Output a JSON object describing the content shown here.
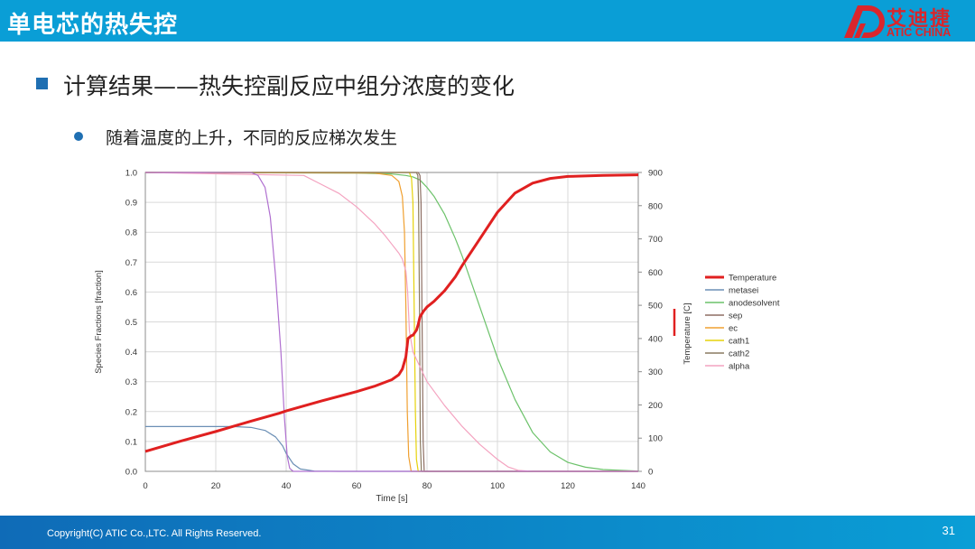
{
  "header": {
    "title": "单电芯的热失控"
  },
  "logo": {
    "text_cn": "艾迪捷",
    "text_en": "ATIC CHINA"
  },
  "heading": "计算结果——热失控副反应中组分浓度的变化",
  "subheading": "随着温度的上升，不同的反应梯次发生",
  "footer": {
    "copyright": "Copyright(C) ATIC Co.,LTC. All Rights Reserved.",
    "page": "31"
  },
  "colors": {
    "header": "#0a9ed6",
    "footer": "#0f6bb7",
    "accent_red": "#d9262c"
  },
  "chart_data": {
    "type": "line",
    "title": "",
    "xlabel": "Time [s]",
    "ylabel_left": "Species Fractions [fraction]",
    "ylabel_right": "Temperature [C]",
    "xlim": [
      0,
      140
    ],
    "ylim_left": [
      0,
      1
    ],
    "ylim_right": [
      0,
      900
    ],
    "x_ticks": [
      "0",
      "20",
      "40",
      "60",
      "80",
      "100",
      "120",
      "140"
    ],
    "y_left_ticks": [
      "0.0",
      "0.1",
      "0.2",
      "0.3",
      "0.4",
      "0.5",
      "0.6",
      "0.7",
      "0.8",
      "0.9",
      "1.0"
    ],
    "y_right_ticks": [
      "0",
      "100",
      "200",
      "300",
      "400",
      "500",
      "600",
      "700",
      "800",
      "900"
    ],
    "grid": true,
    "legend_position": "right",
    "series": [
      {
        "name": "Temperature",
        "axis": "right",
        "color": "#e02020",
        "width": 3,
        "points": [
          [
            0,
            60
          ],
          [
            10,
            91
          ],
          [
            20,
            120
          ],
          [
            30,
            151
          ],
          [
            38,
            175
          ],
          [
            40,
            182
          ],
          [
            50,
            212
          ],
          [
            60,
            240
          ],
          [
            65,
            256
          ],
          [
            70,
            276
          ],
          [
            72,
            291
          ],
          [
            73,
            308
          ],
          [
            74,
            345
          ],
          [
            74.6,
            400
          ],
          [
            75.5,
            408
          ],
          [
            76,
            410
          ],
          [
            77,
            425
          ],
          [
            77.5,
            442
          ],
          [
            78,
            465
          ],
          [
            79,
            482
          ],
          [
            80,
            495
          ],
          [
            82,
            512
          ],
          [
            85,
            544
          ],
          [
            88,
            585
          ],
          [
            90,
            620
          ],
          [
            95,
            700
          ],
          [
            100,
            780
          ],
          [
            105,
            838
          ],
          [
            110,
            868
          ],
          [
            115,
            882
          ],
          [
            120,
            888
          ],
          [
            130,
            891
          ],
          [
            140,
            893
          ]
        ]
      },
      {
        "name": "metasei",
        "axis": "left",
        "color": "#6b8fb5",
        "width": 1.2,
        "points": [
          [
            0,
            0.15
          ],
          [
            25,
            0.15
          ],
          [
            30,
            0.147
          ],
          [
            34,
            0.137
          ],
          [
            37,
            0.115
          ],
          [
            39,
            0.085
          ],
          [
            40,
            0.06
          ],
          [
            42,
            0.025
          ],
          [
            44,
            0.008
          ],
          [
            48,
            0.001
          ],
          [
            55,
            0
          ],
          [
            140,
            0
          ]
        ]
      },
      {
        "name": "anodesolvent",
        "axis": "left",
        "color": "#6cc26a",
        "width": 1.2,
        "points": [
          [
            0,
            1
          ],
          [
            60,
            0.998
          ],
          [
            70,
            0.995
          ],
          [
            74,
            0.99
          ],
          [
            76,
            0.985
          ],
          [
            78,
            0.975
          ],
          [
            80,
            0.95
          ],
          [
            82,
            0.92
          ],
          [
            85,
            0.86
          ],
          [
            88,
            0.78
          ],
          [
            90,
            0.72
          ],
          [
            95,
            0.55
          ],
          [
            100,
            0.38
          ],
          [
            105,
            0.24
          ],
          [
            110,
            0.13
          ],
          [
            115,
            0.065
          ],
          [
            120,
            0.03
          ],
          [
            125,
            0.014
          ],
          [
            130,
            0.006
          ],
          [
            140,
            0.001
          ]
        ]
      },
      {
        "name": "sep",
        "axis": "left",
        "color": "#8d6e63",
        "width": 1.2,
        "points": [
          [
            0,
            1
          ],
          [
            77.5,
            1
          ],
          [
            78,
            0.99
          ],
          [
            78.3,
            0.9
          ],
          [
            78.6,
            0.5
          ],
          [
            78.9,
            0.1
          ],
          [
            79.2,
            0
          ],
          [
            140,
            0
          ]
        ]
      },
      {
        "name": "ec",
        "axis": "left",
        "color": "#f0a030",
        "width": 1.2,
        "points": [
          [
            0,
            1
          ],
          [
            65,
            0.998
          ],
          [
            70,
            0.99
          ],
          [
            72,
            0.97
          ],
          [
            73,
            0.92
          ],
          [
            73.6,
            0.8
          ],
          [
            74,
            0.55
          ],
          [
            74.4,
            0.2
          ],
          [
            74.8,
            0.05
          ],
          [
            75.5,
            0
          ],
          [
            140,
            0
          ]
        ]
      },
      {
        "name": "cath1",
        "axis": "left",
        "color": "#e6d20a",
        "width": 1.2,
        "points": [
          [
            0,
            1
          ],
          [
            75,
            1
          ],
          [
            75.6,
            0.98
          ],
          [
            76,
            0.9
          ],
          [
            76.3,
            0.6
          ],
          [
            76.7,
            0.2
          ],
          [
            77,
            0.04
          ],
          [
            77.5,
            0
          ],
          [
            140,
            0
          ]
        ]
      },
      {
        "name": "cath2",
        "axis": "left",
        "color": "#8a7a60",
        "width": 1.2,
        "points": [
          [
            0,
            1
          ],
          [
            77,
            1
          ],
          [
            77.4,
            0.99
          ],
          [
            77.6,
            0.9
          ],
          [
            77.9,
            0.5
          ],
          [
            78.1,
            0.1
          ],
          [
            78.4,
            0
          ],
          [
            140,
            0
          ]
        ]
      },
      {
        "name": "alpha",
        "axis": "left",
        "color": "#f4a3c0",
        "width": 1.2,
        "points": [
          [
            0,
            1
          ],
          [
            45,
            0.99
          ],
          [
            50,
            0.96
          ],
          [
            55,
            0.93
          ],
          [
            60,
            0.885
          ],
          [
            65,
            0.83
          ],
          [
            68,
            0.79
          ],
          [
            70,
            0.76
          ],
          [
            72,
            0.73
          ],
          [
            73,
            0.71
          ],
          [
            74,
            0.67
          ],
          [
            74.5,
            0.6
          ],
          [
            75,
            0.47
          ],
          [
            76,
            0.4
          ],
          [
            78,
            0.35
          ],
          [
            80,
            0.3
          ],
          [
            85,
            0.22
          ],
          [
            90,
            0.15
          ],
          [
            95,
            0.09
          ],
          [
            100,
            0.04
          ],
          [
            103,
            0.015
          ],
          [
            106,
            0.003
          ],
          [
            110,
            0
          ],
          [
            140,
            0
          ]
        ]
      },
      {
        "name": "",
        "axis": "left",
        "color": "#b070d0",
        "width": 1.2,
        "points": [
          [
            0,
            1
          ],
          [
            30,
            1
          ],
          [
            32,
            0.99
          ],
          [
            34,
            0.95
          ],
          [
            35.5,
            0.85
          ],
          [
            37,
            0.65
          ],
          [
            38.5,
            0.4
          ],
          [
            39.5,
            0.18
          ],
          [
            40.3,
            0.05
          ],
          [
            41,
            0.01
          ],
          [
            42,
            0
          ],
          [
            140,
            0
          ]
        ]
      }
    ]
  }
}
